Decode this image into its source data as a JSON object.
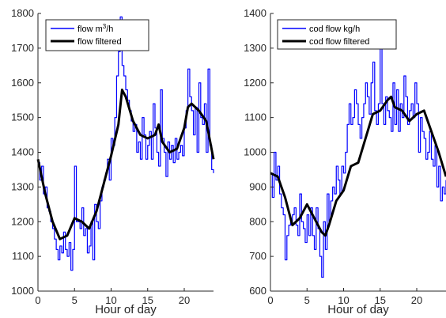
{
  "colors": {
    "raw": "#0000ff",
    "filtered": "#000000",
    "axis": "#262626"
  },
  "chart_data": [
    {
      "type": "line",
      "xlabel": "Hour of day",
      "ylabel": "",
      "xlim": [
        0,
        24
      ],
      "ylim": [
        1000,
        1800
      ],
      "xticks": [
        "0",
        "5",
        "10",
        "15",
        "20"
      ],
      "yticks": [
        "1000",
        "1100",
        "1200",
        "1300",
        "1400",
        "1500",
        "1600",
        "1700",
        "1800"
      ],
      "legend_position": "top-left",
      "series": [
        {
          "name_base": "flow m",
          "name_sup": "3",
          "name_tail": "/h",
          "style": "raw",
          "x": [
            0,
            0.25,
            0.5,
            0.75,
            1,
            1.25,
            1.5,
            1.75,
            2,
            2.25,
            2.5,
            2.75,
            3,
            3.25,
            3.5,
            3.75,
            4,
            4.25,
            4.5,
            4.75,
            5,
            5.25,
            5.5,
            5.75,
            6,
            6.25,
            6.5,
            6.75,
            7,
            7.25,
            7.5,
            7.75,
            8,
            8.25,
            8.5,
            8.75,
            9,
            9.25,
            9.5,
            9.75,
            10,
            10.25,
            10.5,
            10.75,
            11,
            11.25,
            11.5,
            11.75,
            12,
            12.25,
            12.5,
            12.75,
            13,
            13.25,
            13.5,
            13.75,
            14,
            14.25,
            14.5,
            14.75,
            15,
            15.25,
            15.5,
            15.75,
            16,
            16.25,
            16.5,
            16.75,
            17,
            17.25,
            17.5,
            17.75,
            18,
            18.25,
            18.5,
            18.75,
            19,
            19.25,
            19.5,
            19.75,
            20,
            20.25,
            20.5,
            20.75,
            21,
            21.25,
            21.5,
            21.75,
            22,
            22.25,
            22.5,
            22.75,
            23,
            23.25,
            23.5,
            23.75,
            24
          ],
          "y": [
            1370,
            1320,
            1360,
            1280,
            1300,
            1240,
            1230,
            1200,
            1180,
            1150,
            1120,
            1090,
            1130,
            1110,
            1170,
            1120,
            1100,
            1140,
            1060,
            1120,
            1360,
            1200,
            1200,
            1180,
            1240,
            1160,
            1180,
            1110,
            1130,
            1200,
            1090,
            1250,
            1200,
            1180,
            1260,
            1300,
            1320,
            1340,
            1380,
            1320,
            1440,
            1420,
            1500,
            1620,
            1690,
            1790,
            1650,
            1620,
            1580,
            1550,
            1520,
            1490,
            1460,
            1480,
            1400,
            1430,
            1380,
            1500,
            1450,
            1380,
            1420,
            1460,
            1380,
            1540,
            1470,
            1400,
            1360,
            1580,
            1440,
            1400,
            1330,
            1430,
            1380,
            1420,
            1370,
            1440,
            1380,
            1400,
            1420,
            1390,
            1470,
            1520,
            1640,
            1560,
            1520,
            1450,
            1530,
            1400,
            1600,
            1500,
            1480,
            1540,
            1400,
            1640,
            1420,
            1350,
            1340
          ]
        },
        {
          "name": "flow filtered",
          "style": "filtered",
          "x": [
            0,
            1,
            2,
            3,
            4,
            5,
            6,
            7,
            8,
            9,
            10,
            11,
            11.5,
            12,
            13,
            14,
            15,
            16,
            16.5,
            17,
            18,
            19,
            20,
            20.5,
            21,
            22,
            23,
            24
          ],
          "y": [
            1380,
            1280,
            1200,
            1150,
            1160,
            1210,
            1200,
            1180,
            1230,
            1310,
            1390,
            1480,
            1580,
            1560,
            1490,
            1450,
            1440,
            1450,
            1480,
            1430,
            1400,
            1410,
            1470,
            1530,
            1540,
            1520,
            1490,
            1380
          ]
        }
      ]
    },
    {
      "type": "line",
      "xlabel": "Hour of day",
      "ylabel": "",
      "xlim": [
        0,
        24
      ],
      "ylim": [
        600,
        1400
      ],
      "xticks": [
        "0",
        "5",
        "10",
        "15",
        "20"
      ],
      "yticks": [
        "600",
        "700",
        "800",
        "900",
        "1000",
        "1100",
        "1200",
        "1300",
        "1400"
      ],
      "legend_position": "top-left",
      "series": [
        {
          "name": "cod flow kg/h",
          "style": "raw",
          "x": [
            0,
            0.25,
            0.5,
            0.75,
            1,
            1.25,
            1.5,
            1.75,
            2,
            2.25,
            2.5,
            2.75,
            3,
            3.25,
            3.5,
            3.75,
            4,
            4.25,
            4.5,
            4.75,
            5,
            5.25,
            5.5,
            5.75,
            6,
            6.25,
            6.5,
            6.75,
            7,
            7.25,
            7.5,
            7.75,
            8,
            8.25,
            8.5,
            8.75,
            9,
            9.25,
            9.5,
            9.75,
            10,
            10.25,
            10.5,
            10.75,
            11,
            11.25,
            11.5,
            11.75,
            12,
            12.25,
            12.5,
            12.75,
            13,
            13.25,
            13.5,
            13.75,
            14,
            14.25,
            14.5,
            14.75,
            15,
            15.25,
            15.5,
            15.75,
            16,
            16.25,
            16.5,
            16.75,
            17,
            17.25,
            17.5,
            17.75,
            18,
            18.25,
            18.5,
            18.75,
            19,
            19.25,
            19.5,
            19.75,
            20,
            20.25,
            20.5,
            20.75,
            21,
            21.25,
            21.5,
            21.75,
            22,
            22.25,
            22.5,
            22.75,
            23,
            23.25,
            23.5,
            23.75,
            24
          ],
          "y": [
            940,
            870,
            1000,
            920,
            960,
            880,
            840,
            820,
            690,
            760,
            790,
            800,
            820,
            840,
            790,
            760,
            880,
            800,
            780,
            740,
            820,
            760,
            840,
            760,
            720,
            840,
            780,
            700,
            640,
            800,
            720,
            880,
            800,
            860,
            900,
            880,
            960,
            920,
            880,
            960,
            940,
            1000,
            1080,
            1140,
            1080,
            1100,
            1180,
            1140,
            1080,
            1040,
            1100,
            1140,
            1200,
            1160,
            1110,
            1200,
            1260,
            1120,
            1080,
            1140,
            1300,
            1140,
            1080,
            1160,
            1120,
            1100,
            1060,
            1200,
            1080,
            1180,
            1060,
            1140,
            1100,
            1220,
            1160,
            1080,
            1120,
            1140,
            1100,
            1200,
            1140,
            1000,
            1100,
            1060,
            1040,
            980,
            1000,
            1060,
            980,
            960,
            1020,
            900,
            960,
            860,
            900,
            880,
            920
          ]
        },
        {
          "name": "cod flow filtered",
          "style": "filtered",
          "x": [
            0,
            1,
            2,
            3,
            4,
            5,
            6,
            7,
            7.5,
            8,
            9,
            10,
            11,
            12,
            13,
            14,
            15,
            16,
            16.5,
            17,
            18,
            19,
            20,
            21,
            22,
            23,
            24
          ],
          "y": [
            940,
            930,
            870,
            790,
            810,
            850,
            810,
            770,
            760,
            790,
            860,
            890,
            960,
            970,
            1040,
            1110,
            1120,
            1150,
            1160,
            1130,
            1120,
            1090,
            1110,
            1120,
            1060,
            1000,
            930
          ]
        }
      ]
    }
  ]
}
